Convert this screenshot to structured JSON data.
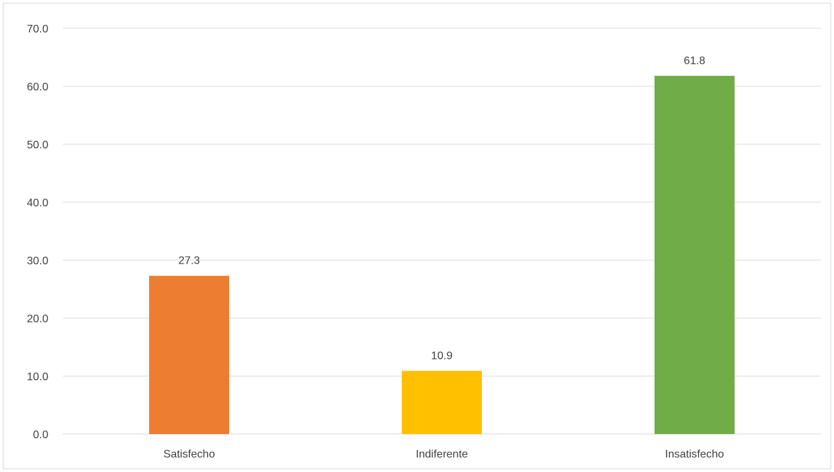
{
  "chart_data": {
    "type": "bar",
    "title": "",
    "xlabel": "",
    "ylabel": "",
    "categories": [
      "Satisfecho",
      "Indiferente",
      "Insatisfecho"
    ],
    "values": [
      27.3,
      10.9,
      61.8
    ],
    "data_labels": [
      "27.3",
      "10.9",
      "61.8"
    ],
    "colors": [
      "#ED7D31",
      "#FFC000",
      "#70AD47"
    ],
    "ylim": [
      0,
      70
    ],
    "yticks": [
      0,
      10,
      20,
      30,
      40,
      50,
      60,
      70
    ],
    "ytick_labels": [
      "0.0",
      "10.0",
      "20.0",
      "30.0",
      "40.0",
      "50.0",
      "60.0",
      "70.0"
    ],
    "grid": true,
    "legend": "none"
  }
}
